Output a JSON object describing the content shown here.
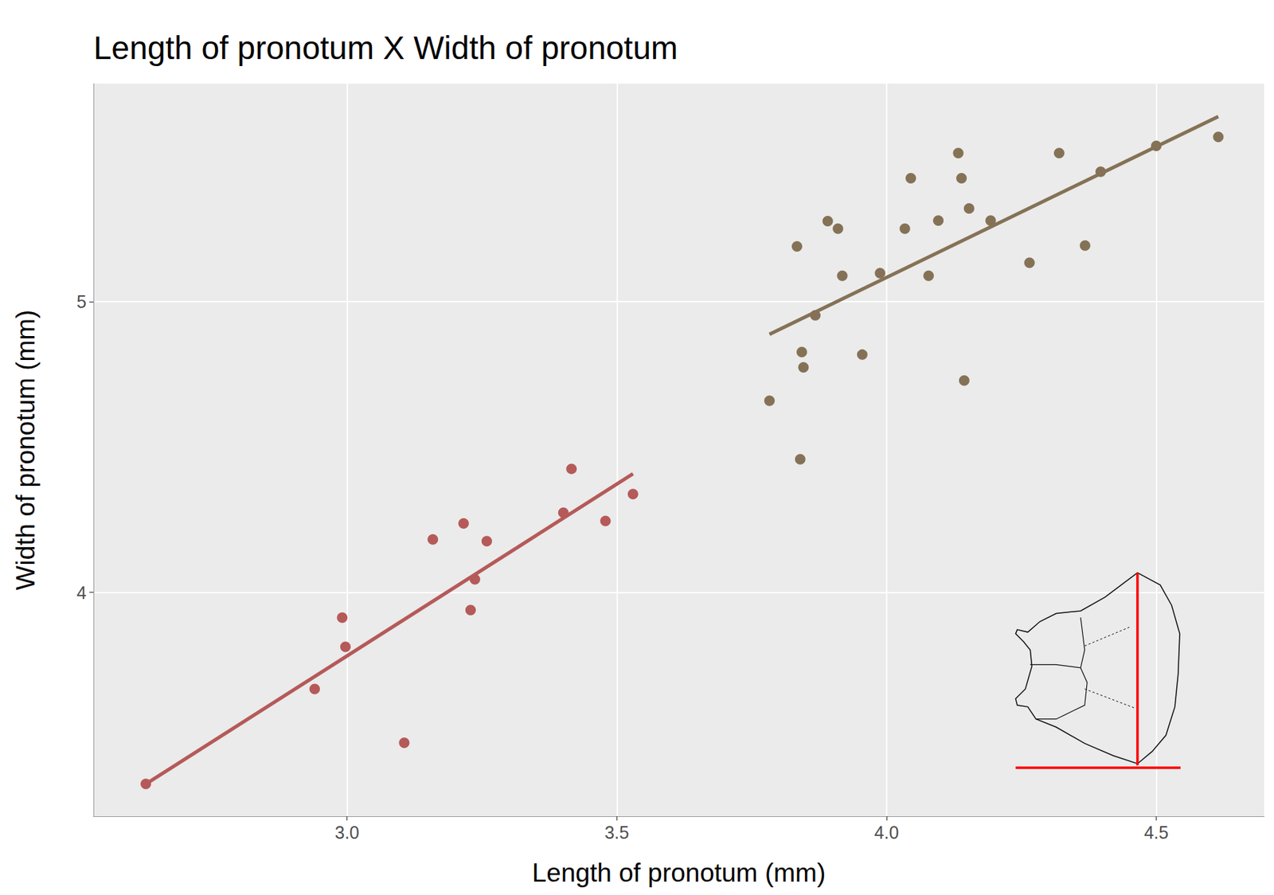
{
  "chart_data": {
    "type": "scatter",
    "title": "Length of pronotum X Width of pronotum",
    "x_label": "Length of pronotum (mm)",
    "y_label": "Width of pronotum (mm)",
    "xlim": [
      2.53,
      4.7
    ],
    "ylim": [
      3.23,
      5.75
    ],
    "xticks": [
      {
        "value": 3,
        "label": "3.0"
      },
      {
        "value": 3.5,
        "label": "3.5"
      },
      {
        "value": 4,
        "label": "4.0"
      },
      {
        "value": 4.5,
        "label": "4.5"
      }
    ],
    "yticks": [
      4,
      5
    ],
    "grid": true,
    "series": [
      {
        "color": "#B55A59",
        "marker": "circle",
        "x": [
          2.627,
          2.94,
          2.991,
          2.997,
          3.106,
          3.159,
          3.216,
          3.229,
          3.237,
          3.259,
          3.401,
          3.416,
          3.479,
          3.53
        ],
        "values": [
          3.341,
          3.668,
          3.913,
          3.813,
          3.483,
          4.182,
          4.237,
          3.939,
          4.045,
          4.176,
          4.274,
          4.425,
          4.246,
          4.338
        ],
        "fit": {
          "x": [
            2.627,
            3.53
          ],
          "y": [
            3.341,
            4.408
          ]
        }
      },
      {
        "color": "#857256",
        "marker": "circle",
        "x": [
          3.783,
          3.834,
          3.84,
          3.843,
          3.846,
          3.868,
          3.891,
          3.91,
          3.918,
          3.955,
          3.988,
          4.034,
          4.045,
          4.078,
          4.096,
          4.133,
          4.139,
          4.144,
          4.153,
          4.193,
          4.265,
          4.32,
          4.368,
          4.397,
          4.5,
          4.615
        ],
        "values": [
          4.659,
          5.19,
          4.458,
          4.827,
          4.774,
          4.953,
          5.277,
          5.251,
          5.089,
          4.818,
          5.098,
          5.251,
          5.425,
          5.089,
          5.279,
          5.511,
          5.425,
          4.729,
          5.321,
          5.279,
          5.134,
          5.511,
          5.193,
          5.447,
          5.536,
          5.567
        ],
        "fit": {
          "x": [
            3.783,
            4.615
          ],
          "y": [
            4.888,
            5.637
          ]
        }
      }
    ]
  }
}
